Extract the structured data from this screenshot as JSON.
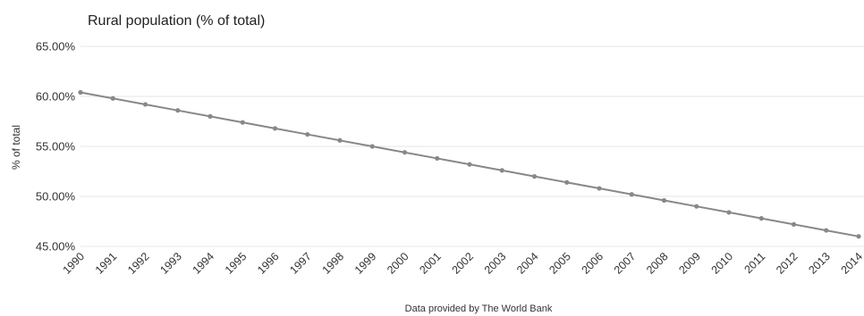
{
  "chart_data": {
    "type": "line",
    "title": "Rural population (% of total)",
    "ylabel": "% of total",
    "xlabel": "",
    "source": "Data provided by The World Bank",
    "ylim": [
      45,
      65
    ],
    "y_ticks": [
      "45.00%",
      "50.00%",
      "55.00%",
      "60.00%",
      "65.00%"
    ],
    "y_tick_values": [
      45,
      50,
      55,
      60,
      65
    ],
    "grid": true,
    "line_color": "#888888",
    "x": [
      "1990",
      "1991",
      "1992",
      "1993",
      "1994",
      "1995",
      "1996",
      "1997",
      "1998",
      "1999",
      "2000",
      "2001",
      "2002",
      "2003",
      "2004",
      "2005",
      "2006",
      "2007",
      "2008",
      "2009",
      "2010",
      "2011",
      "2012",
      "2013",
      "2014"
    ],
    "series": [
      {
        "values": [
          60.4,
          59.8,
          59.2,
          58.6,
          58.0,
          57.4,
          56.8,
          56.2,
          55.6,
          55.0,
          54.4,
          53.8,
          53.2,
          52.6,
          52.0,
          51.4,
          50.8,
          50.2,
          49.6,
          49.0,
          48.4,
          47.8,
          47.2,
          46.6,
          46.0
        ]
      }
    ]
  }
}
